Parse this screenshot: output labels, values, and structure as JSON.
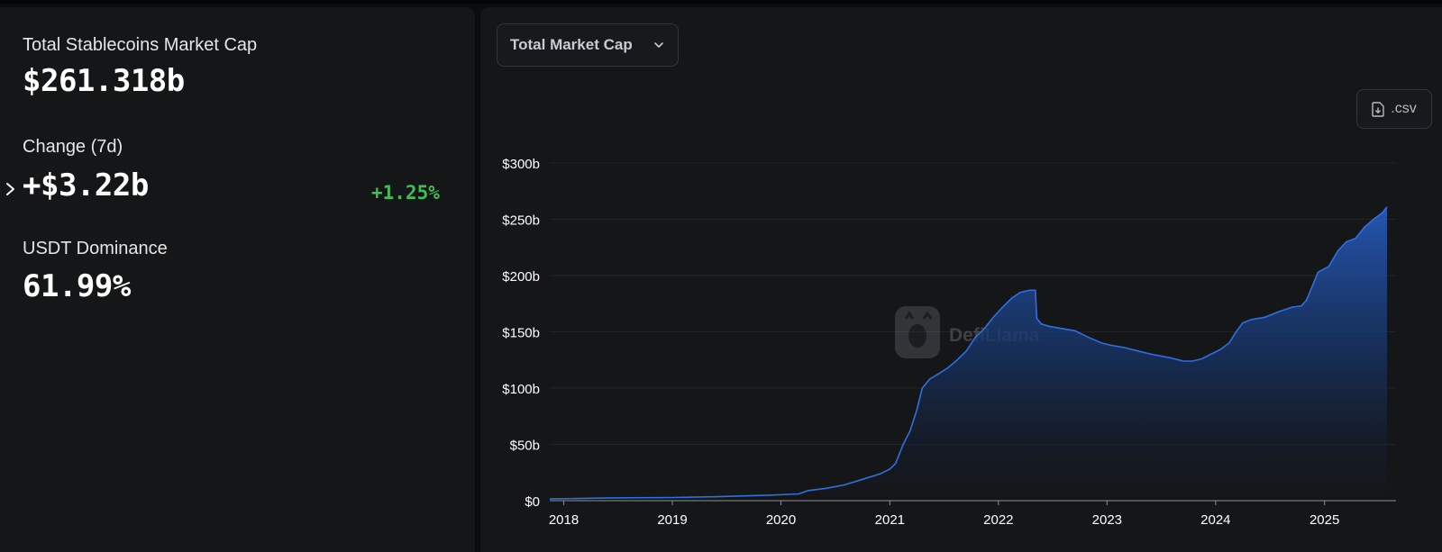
{
  "stats": {
    "market_cap_label": "Total Stablecoins Market Cap",
    "market_cap_value": "$261.318b",
    "change_label": "Change (7d)",
    "change_value": "+$3.22b",
    "change_percent": "+1.25%",
    "dominance_label": "USDT Dominance",
    "dominance_value": "61.99%"
  },
  "controls": {
    "metric_select": "Total Market Cap",
    "csv_label": ".csv"
  },
  "watermark": "DefiLlama",
  "colors": {
    "line": "#2f6fe0",
    "positive": "#3fbe55",
    "background": "#151618"
  },
  "icons": {
    "expand": "chevron-right-icon",
    "dropdown": "chevron-down-icon",
    "download": "file-download-icon",
    "watermark": "llama-logo-icon"
  },
  "chart_data": {
    "type": "area",
    "title": "",
    "xlabel": "",
    "ylabel": "",
    "ylim": [
      0,
      300
    ],
    "xlim": [
      "2017-11-15",
      "2025-07-30"
    ],
    "y_ticks": [
      "$0",
      "$50b",
      "$100b",
      "$150b",
      "$200b",
      "$250b",
      "$300b"
    ],
    "y_tick_values": [
      0,
      50,
      100,
      150,
      200,
      250,
      300
    ],
    "x_ticks": [
      "2018",
      "2019",
      "2020",
      "2021",
      "2022",
      "2023",
      "2024",
      "2025"
    ],
    "x_tick_dates": [
      "2018-01-01",
      "2019-01-01",
      "2020-01-01",
      "2021-01-01",
      "2022-01-01",
      "2023-01-01",
      "2024-01-01",
      "2025-01-01"
    ],
    "grid": true,
    "legend": "none",
    "series": [
      {
        "points": [
          [
            "2017-11-15",
            1.5
          ],
          [
            "2018-06-01",
            2.5
          ],
          [
            "2019-01-01",
            2.8
          ],
          [
            "2019-06-01",
            3.5
          ],
          [
            "2019-12-01",
            5
          ],
          [
            "2020-03-01",
            6
          ],
          [
            "2020-04-01",
            9
          ],
          [
            "2020-06-01",
            11
          ],
          [
            "2020-08-01",
            14
          ],
          [
            "2020-10-01",
            19
          ],
          [
            "2020-12-01",
            24
          ],
          [
            "2021-01-01",
            28
          ],
          [
            "2021-01-20",
            33
          ],
          [
            "2021-02-15",
            50
          ],
          [
            "2021-03-10",
            62
          ],
          [
            "2021-04-01",
            80
          ],
          [
            "2021-04-20",
            100
          ],
          [
            "2021-05-15",
            108
          ],
          [
            "2021-06-15",
            113
          ],
          [
            "2021-07-15",
            118
          ],
          [
            "2021-08-15",
            125
          ],
          [
            "2021-09-15",
            133
          ],
          [
            "2021-10-15",
            145
          ],
          [
            "2021-11-15",
            153
          ],
          [
            "2021-12-15",
            163
          ],
          [
            "2022-01-15",
            172
          ],
          [
            "2022-02-15",
            180
          ],
          [
            "2022-03-15",
            185
          ],
          [
            "2022-04-15",
            187
          ],
          [
            "2022-05-05",
            187
          ],
          [
            "2022-05-10",
            162
          ],
          [
            "2022-05-25",
            157
          ],
          [
            "2022-06-20",
            155
          ],
          [
            "2022-08-01",
            153
          ],
          [
            "2022-09-15",
            151
          ],
          [
            "2022-11-01",
            145
          ],
          [
            "2022-12-15",
            140
          ],
          [
            "2023-01-15",
            138
          ],
          [
            "2023-03-01",
            136
          ],
          [
            "2023-04-15",
            133
          ],
          [
            "2023-06-01",
            130
          ],
          [
            "2023-08-01",
            127
          ],
          [
            "2023-09-15",
            124
          ],
          [
            "2023-10-15",
            124
          ],
          [
            "2023-11-15",
            126
          ],
          [
            "2023-12-15",
            130
          ],
          [
            "2024-01-15",
            134
          ],
          [
            "2024-02-15",
            140
          ],
          [
            "2024-03-10",
            150
          ],
          [
            "2024-04-01",
            158
          ],
          [
            "2024-05-01",
            161
          ],
          [
            "2024-06-15",
            163
          ],
          [
            "2024-08-01",
            168
          ],
          [
            "2024-09-15",
            172
          ],
          [
            "2024-10-15",
            173
          ],
          [
            "2024-11-01",
            178
          ],
          [
            "2024-11-20",
            190
          ],
          [
            "2024-12-10",
            203
          ],
          [
            "2025-01-15",
            208
          ],
          [
            "2025-02-15",
            222
          ],
          [
            "2025-03-15",
            230
          ],
          [
            "2025-04-15",
            233
          ],
          [
            "2025-05-15",
            243
          ],
          [
            "2025-06-15",
            250
          ],
          [
            "2025-07-15",
            256
          ],
          [
            "2025-07-30",
            261
          ]
        ]
      }
    ]
  }
}
